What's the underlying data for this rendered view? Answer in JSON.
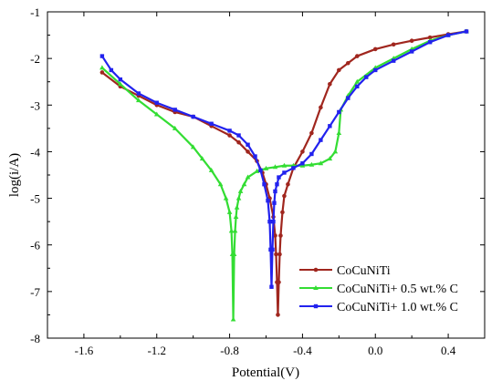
{
  "chart_data": {
    "type": "line",
    "title": "",
    "xlabel": "Potential(V)",
    "ylabel": "log(i/A)",
    "xlim": [
      -1.8,
      0.6
    ],
    "ylim": [
      -8,
      -1
    ],
    "x_ticks": [
      -1.6,
      -1.2,
      -0.8,
      -0.4,
      0.0,
      0.4
    ],
    "x_tick_labels": [
      "-1.6",
      "-1.2",
      "-0.8",
      "-0.4",
      "0.0",
      "0.4"
    ],
    "y_ticks": [
      -1,
      -2,
      -3,
      -4,
      -5,
      -6,
      -7,
      -8
    ],
    "y_tick_labels": [
      "-1",
      "-2",
      "-3",
      "-4",
      "-5",
      "-6",
      "-7",
      "-8"
    ],
    "grid": false,
    "legend_position": "bottom-right",
    "series": [
      {
        "name": "CoCuNiTi",
        "color": "#a0261e",
        "marker": "circle",
        "x": [
          -1.5,
          -1.4,
          -1.3,
          -1.2,
          -1.1,
          -1.0,
          -0.9,
          -0.8,
          -0.75,
          -0.7,
          -0.65,
          -0.62,
          -0.6,
          -0.58,
          -0.56,
          -0.55,
          -0.545,
          -0.54,
          -0.535,
          -0.53,
          -0.525,
          -0.52,
          -0.51,
          -0.5,
          -0.48,
          -0.45,
          -0.4,
          -0.35,
          -0.3,
          -0.25,
          -0.2,
          -0.15,
          -0.1,
          0.0,
          0.1,
          0.2,
          0.3,
          0.4,
          0.5
        ],
        "y": [
          -2.3,
          -2.6,
          -2.8,
          -3.0,
          -3.15,
          -3.25,
          -3.45,
          -3.65,
          -3.8,
          -4.0,
          -4.2,
          -4.45,
          -4.7,
          -5.0,
          -5.4,
          -5.8,
          -6.2,
          -6.8,
          -7.5,
          -6.8,
          -6.2,
          -5.8,
          -5.3,
          -4.95,
          -4.7,
          -4.35,
          -4.0,
          -3.6,
          -3.05,
          -2.55,
          -2.25,
          -2.1,
          -1.95,
          -1.8,
          -1.7,
          -1.62,
          -1.55,
          -1.48,
          -1.42
        ]
      },
      {
        "name": "CoCuNiTi+ 0.5 wt.% C",
        "color": "#33dd33",
        "marker": "triangle",
        "x": [
          -1.5,
          -1.4,
          -1.3,
          -1.2,
          -1.1,
          -1.0,
          -0.95,
          -0.9,
          -0.85,
          -0.82,
          -0.8,
          -0.79,
          -0.785,
          -0.78,
          -0.775,
          -0.77,
          -0.765,
          -0.76,
          -0.75,
          -0.74,
          -0.72,
          -0.7,
          -0.65,
          -0.6,
          -0.55,
          -0.5,
          -0.45,
          -0.4,
          -0.35,
          -0.3,
          -0.25,
          -0.22,
          -0.2,
          -0.19,
          -0.15,
          -0.1,
          0.0,
          0.1,
          0.2,
          0.3,
          0.4,
          0.5
        ],
        "y": [
          -2.2,
          -2.55,
          -2.9,
          -3.2,
          -3.5,
          -3.9,
          -4.15,
          -4.4,
          -4.7,
          -5.0,
          -5.3,
          -5.7,
          -6.2,
          -7.6,
          -6.2,
          -5.7,
          -5.4,
          -5.2,
          -5.0,
          -4.85,
          -4.7,
          -4.55,
          -4.42,
          -4.36,
          -4.33,
          -4.3,
          -4.3,
          -4.3,
          -4.28,
          -4.25,
          -4.15,
          -4.0,
          -3.6,
          -3.1,
          -2.8,
          -2.5,
          -2.2,
          -2.0,
          -1.8,
          -1.62,
          -1.5,
          -1.42
        ]
      },
      {
        "name": "CoCuNiTi+ 1.0 wt.% C",
        "color": "#2222ee",
        "marker": "square",
        "x": [
          -1.5,
          -1.45,
          -1.4,
          -1.3,
          -1.2,
          -1.1,
          -1.0,
          -0.9,
          -0.8,
          -0.75,
          -0.7,
          -0.66,
          -0.63,
          -0.61,
          -0.59,
          -0.58,
          -0.575,
          -0.57,
          -0.565,
          -0.56,
          -0.555,
          -0.55,
          -0.54,
          -0.53,
          -0.5,
          -0.45,
          -0.4,
          -0.35,
          -0.3,
          -0.25,
          -0.2,
          -0.15,
          -0.1,
          -0.05,
          0.0,
          0.1,
          0.2,
          0.3,
          0.4,
          0.5
        ],
        "y": [
          -1.95,
          -2.25,
          -2.45,
          -2.75,
          -2.95,
          -3.1,
          -3.25,
          -3.4,
          -3.55,
          -3.65,
          -3.85,
          -4.1,
          -4.4,
          -4.7,
          -5.05,
          -5.5,
          -6.1,
          -6.9,
          -6.1,
          -5.5,
          -5.1,
          -4.85,
          -4.7,
          -4.55,
          -4.45,
          -4.35,
          -4.25,
          -4.05,
          -3.75,
          -3.45,
          -3.15,
          -2.85,
          -2.6,
          -2.4,
          -2.25,
          -2.05,
          -1.85,
          -1.65,
          -1.5,
          -1.42
        ]
      }
    ]
  }
}
